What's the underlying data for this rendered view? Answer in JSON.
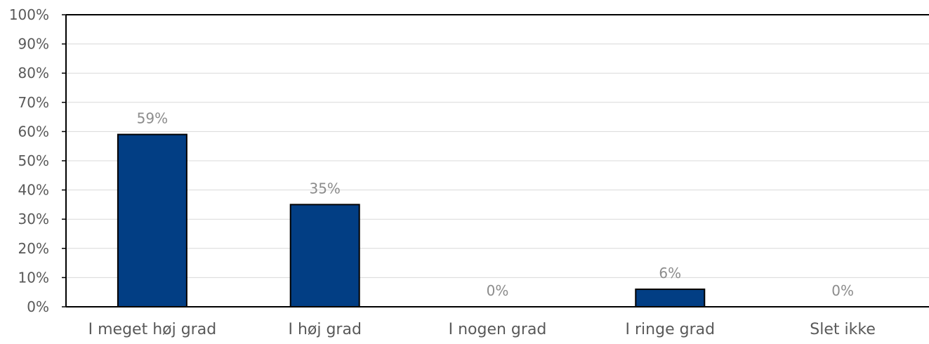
{
  "chart_data": {
    "type": "bar",
    "title": "",
    "xlabel": "",
    "ylabel": "",
    "categories": [
      "I meget høj grad",
      "I høj grad",
      "I nogen grad",
      "I ringe grad",
      "Slet ikke"
    ],
    "values": [
      59,
      35,
      0,
      6,
      0
    ],
    "data_labels": [
      "59%",
      "35%",
      "0%",
      "6%",
      "0%"
    ],
    "ylim": [
      0,
      100
    ],
    "y_ticks": [
      0,
      10,
      20,
      30,
      40,
      50,
      60,
      70,
      80,
      90,
      100
    ],
    "y_tick_labels": [
      "0%",
      "10%",
      "20%",
      "30%",
      "40%",
      "50%",
      "60%",
      "70%",
      "80%",
      "90%",
      "100%"
    ],
    "grid": true,
    "legend": "none",
    "colors": {
      "bar": "#023e84",
      "bar_edge": "#000000",
      "axis": "#000000",
      "grid": "#d9d9d9",
      "text": "#595959",
      "data_label": "#8c8c8c"
    }
  }
}
